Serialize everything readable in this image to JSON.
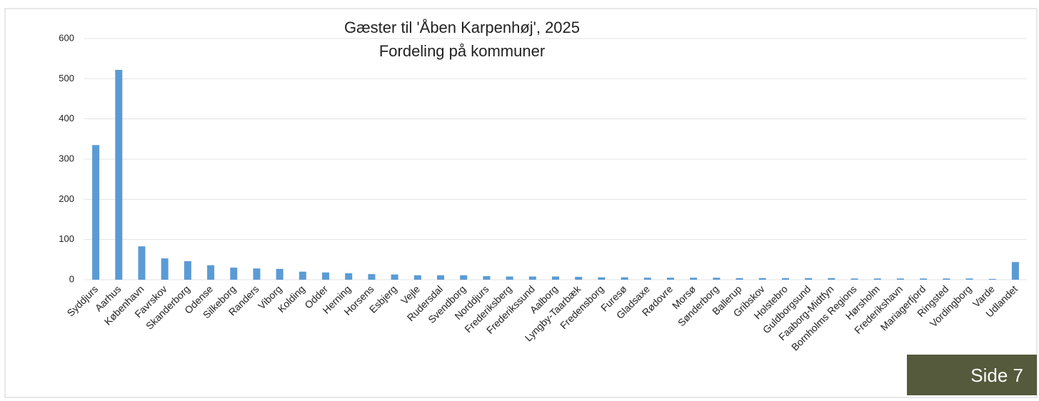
{
  "chart_data": {
    "type": "bar",
    "title": "Gæster til 'Åben Karpenhøj', 2025",
    "subtitle": "Fordeling på kommuner",
    "categories": [
      "Syddjurs",
      "Aarhus",
      "København",
      "Favrskov",
      "Skanderborg",
      "Odense",
      "Silkeborg",
      "Randers",
      "Viborg",
      "Kolding",
      "Odder",
      "Herning",
      "Horsens",
      "Esbjerg",
      "Vejle",
      "Rudersdal",
      "Svendborg",
      "Norddjurs",
      "Frederiksberg",
      "Frederikssund",
      "Aalborg",
      "Lyngby-Taarbæk",
      "Fredensborg",
      "Furesø",
      "Gladsaxe",
      "Rødovre",
      "Morsø",
      "Sønderborg",
      "Ballerup",
      "Gribskov",
      "Holstebro",
      "Guldborgsund",
      "Faaborg-Midtfyn",
      "Bornholms Regions",
      "Hørsholm",
      "Frederikshavn",
      "Mariagerfjord",
      "Ringsted",
      "Vordingborg",
      "Varde",
      "Udlandet"
    ],
    "values": [
      335,
      522,
      83,
      53,
      46,
      36,
      30,
      28,
      27,
      20,
      18,
      16,
      14,
      13,
      11,
      11,
      11,
      9,
      8,
      8,
      8,
      7,
      6,
      6,
      5,
      5,
      5,
      5,
      4,
      4,
      4,
      4,
      4,
      3,
      3,
      3,
      3,
      3,
      3,
      2,
      44
    ],
    "color": "#5b9bd5",
    "ylim": [
      0,
      600
    ],
    "yticks": [
      0,
      100,
      200,
      300,
      400,
      500,
      600
    ],
    "grid": true
  },
  "footer": "Side 7"
}
